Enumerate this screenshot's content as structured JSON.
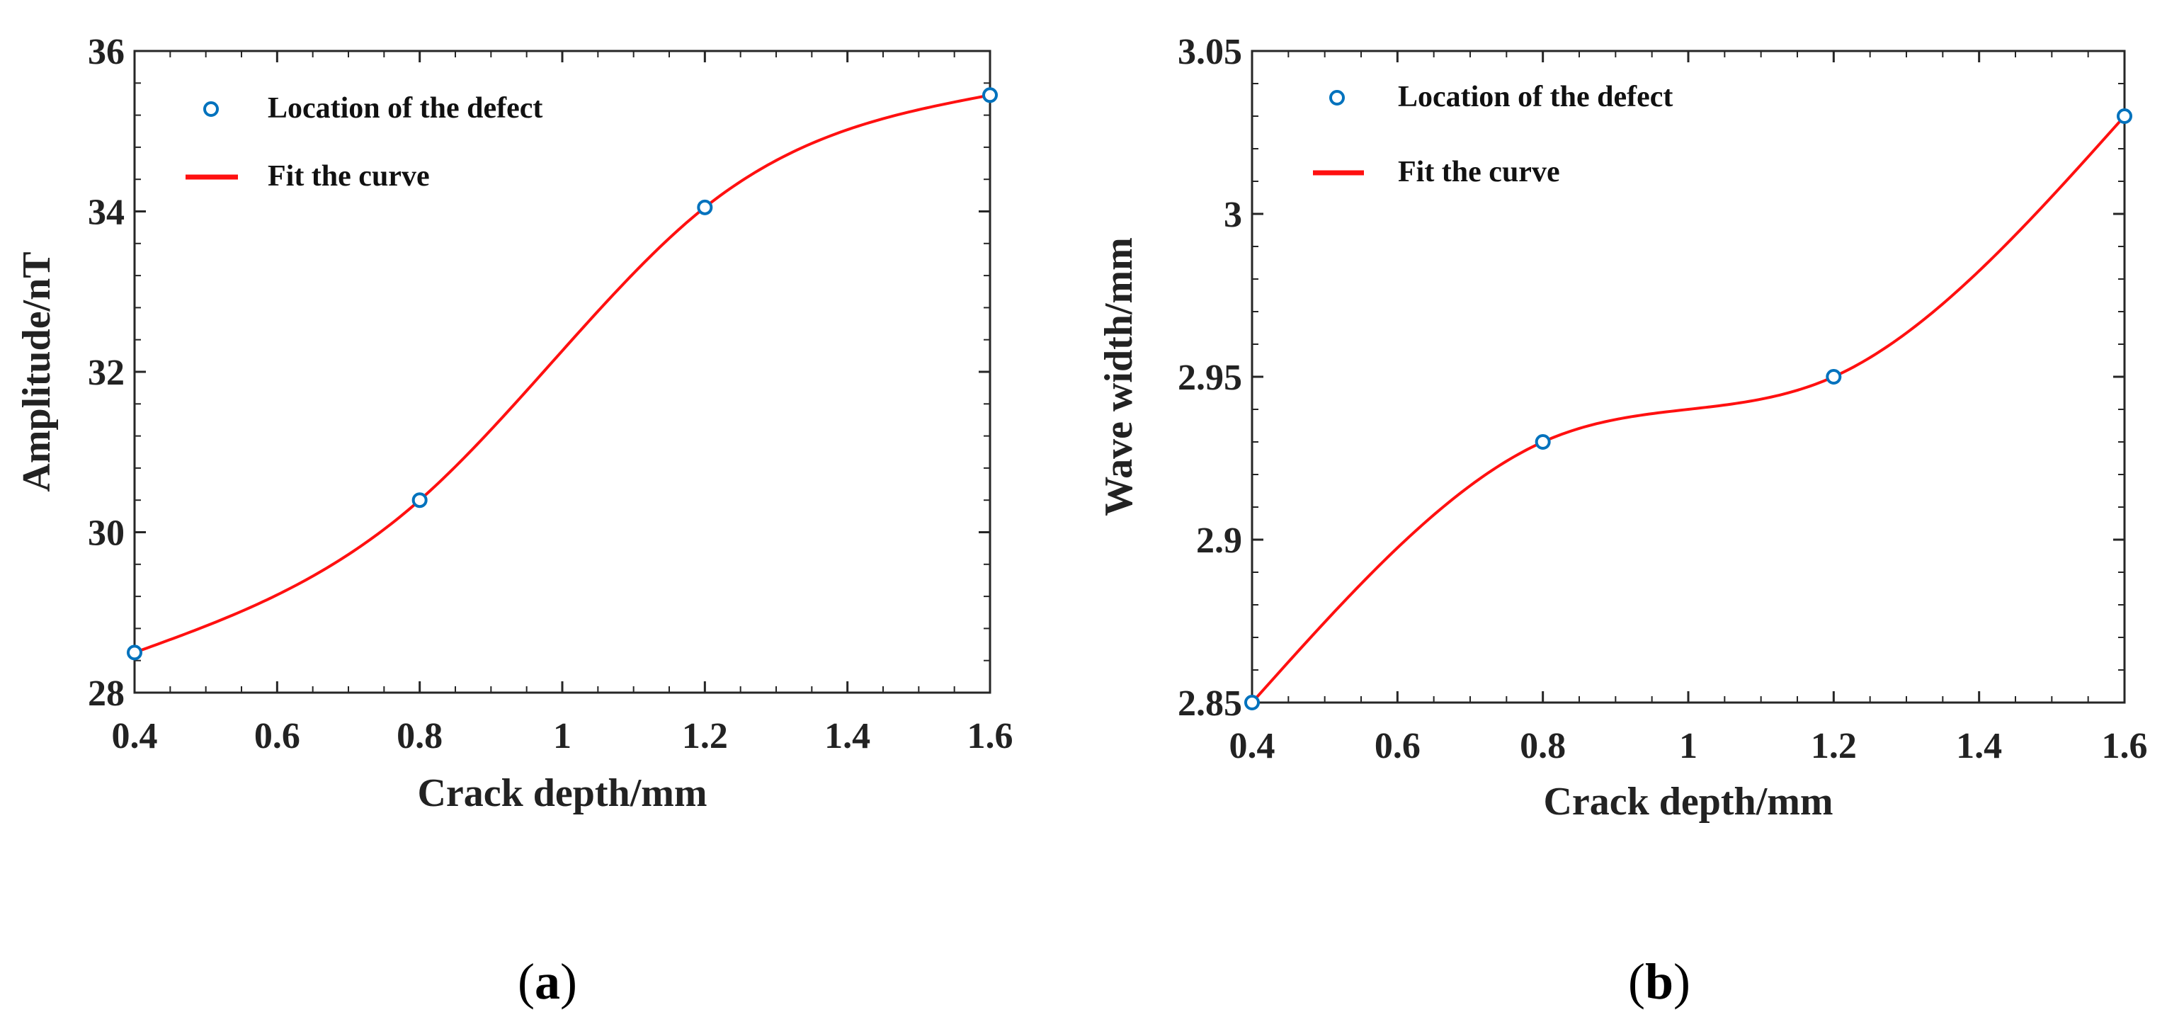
{
  "chart_data": [
    {
      "type": "line",
      "panel": "a",
      "xlabel": "Crack depth/mm",
      "ylabel": "Amplitude/nT",
      "xlim": [
        0.4,
        1.6
      ],
      "ylim": [
        28,
        36
      ],
      "xticks": [
        "0.4",
        "0.6",
        "0.8",
        "1",
        "1.2",
        "1.4",
        "1.6"
      ],
      "yticks": [
        "28",
        "30",
        "32",
        "34",
        "36"
      ],
      "grid": false,
      "legend_placement": "top-left",
      "series": [
        {
          "name": "Location of the defect",
          "kind": "scatter",
          "color": "#0072BD",
          "x": [
            0.4,
            0.8,
            1.2,
            1.6
          ],
          "y": [
            28.5,
            30.4,
            34.05,
            35.45
          ]
        },
        {
          "name": "Fit the curve",
          "kind": "line",
          "color": "#FF1010",
          "x": [
            0.4,
            0.8,
            1.2,
            1.6
          ],
          "y": [
            28.5,
            30.4,
            34.05,
            35.45
          ]
        }
      ]
    },
    {
      "type": "line",
      "panel": "b",
      "xlabel": "Crack depth/mm",
      "ylabel": "Wave width/mm",
      "xlim": [
        0.4,
        1.6
      ],
      "ylim": [
        2.85,
        3.05
      ],
      "xticks": [
        "0.4",
        "0.6",
        "0.8",
        "1",
        "1.2",
        "1.4",
        "1.6"
      ],
      "yticks": [
        "2.85",
        "2.9",
        "2.95",
        "3",
        "3.05"
      ],
      "grid": false,
      "legend_placement": "top-left",
      "series": [
        {
          "name": "Location of the defect",
          "kind": "scatter",
          "color": "#0072BD",
          "x": [
            0.4,
            0.8,
            1.2,
            1.6
          ],
          "y": [
            2.85,
            2.93,
            2.95,
            3.03
          ]
        },
        {
          "name": "Fit the curve",
          "kind": "line",
          "color": "#FF1010",
          "x": [
            0.4,
            0.8,
            1.2,
            1.6
          ],
          "y": [
            2.85,
            2.93,
            2.95,
            3.03
          ]
        }
      ]
    }
  ],
  "panel_labels": [
    "a",
    "b"
  ]
}
